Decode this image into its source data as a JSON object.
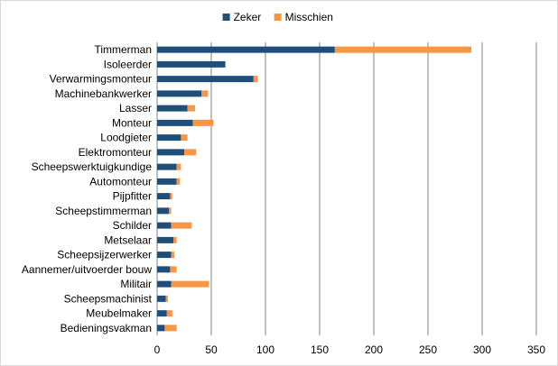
{
  "chart_data": {
    "type": "bar",
    "orientation": "horizontal",
    "stacked": true,
    "title": "",
    "xlabel": "",
    "ylabel": "",
    "xlim": [
      0,
      350
    ],
    "x_ticks": [
      0,
      50,
      100,
      150,
      200,
      250,
      300,
      350
    ],
    "grid": "vertical",
    "legend_position": "top",
    "categories": [
      "Timmerman",
      "Isoleerder",
      "Verwarmingsmonteur",
      "Machinebankwerker",
      "Lasser",
      "Monteur",
      "Loodgieter",
      "Elektromonteur",
      "Scheepswerktuigkundige",
      "Automonteur",
      "Pijpfitter",
      "Scheepstimmerman",
      "Schilder",
      "Metselaar",
      "Scheepsijzerwerker",
      "Aannemer/uitvoerder bouw",
      "Militair",
      "Scheepsmachinist",
      "Meubelmaker",
      "Bedieningsvakman"
    ],
    "series": [
      {
        "name": "Zeker",
        "color": "#1f4e79",
        "values": [
          164,
          63,
          89,
          41,
          28,
          33,
          22,
          25,
          18,
          18,
          12,
          11,
          13,
          15,
          13,
          12,
          13,
          8,
          9,
          7
        ]
      },
      {
        "name": "Misschien",
        "color": "#f79646",
        "values": [
          126,
          0,
          4,
          6,
          7,
          19,
          6,
          11,
          4,
          3,
          2,
          2,
          19,
          3,
          3,
          6,
          35,
          2,
          5,
          11
        ]
      }
    ]
  }
}
